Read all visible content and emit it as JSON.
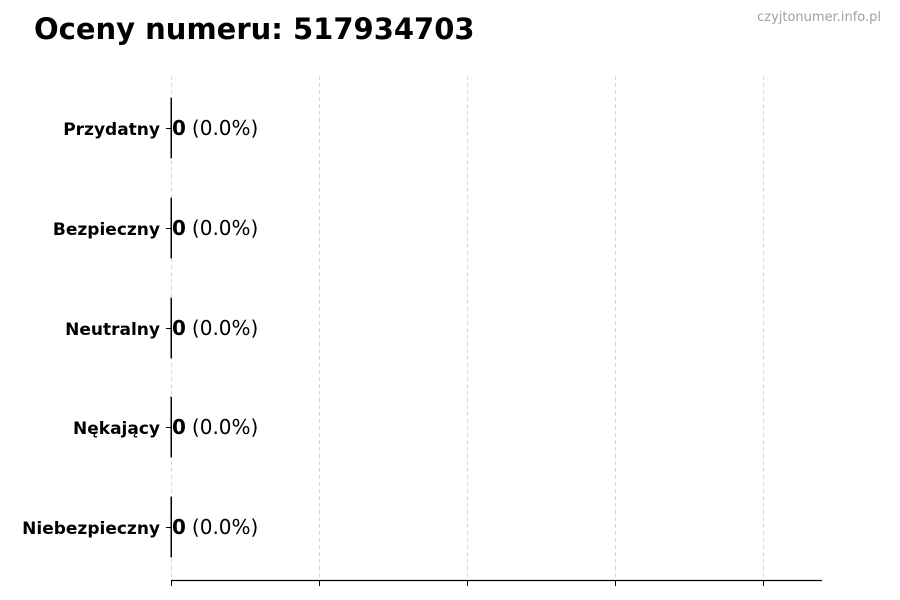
{
  "title": "Oceny numeru: 517934703",
  "watermark": "czyjtonumer.info.pl",
  "chart_data": {
    "type": "bar",
    "orientation": "horizontal",
    "title": "Oceny numeru: 517934703",
    "categories": [
      "Przydatny",
      "Bezpieczny",
      "Neutralny",
      "Nękający",
      "Niebezpieczny"
    ],
    "values": [
      0,
      0,
      0,
      0,
      0
    ],
    "percentages": [
      "0.0%",
      "0.0%",
      "0.0%",
      "0.0%",
      "0.0%"
    ],
    "data_labels": [
      "(0.0%)",
      "(0.0%)",
      "(0.0%)",
      "(0.0%)",
      "(0.0%)"
    ],
    "xlabel": "",
    "ylabel": "",
    "x_tick_count": 5,
    "x_tick_labels_shown": false,
    "grid": "x, dashed",
    "bar_edge_color": "#000000",
    "grid_color": "#cccccc"
  }
}
